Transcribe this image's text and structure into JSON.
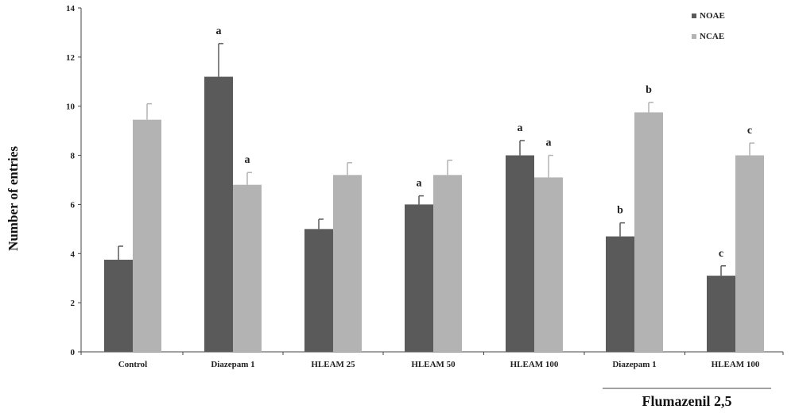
{
  "chart_data": {
    "type": "bar",
    "ylabel": "Number  of entries",
    "ylim": [
      0,
      14
    ],
    "yticks": [
      0,
      2,
      4,
      6,
      8,
      10,
      12,
      14
    ],
    "categories": [
      "Control",
      "Diazepam 1",
      "HLEAM 25",
      "HLEAM 50",
      "HLEAM 100",
      "Diazepam 1",
      "HLEAM 100"
    ],
    "series": [
      {
        "name": "NOAE",
        "color": "#5a5a5a",
        "values": [
          3.75,
          11.2,
          5.0,
          6.0,
          8.0,
          4.7,
          3.1
        ],
        "errors": [
          0.55,
          1.35,
          0.4,
          0.35,
          0.6,
          0.55,
          0.4
        ],
        "labels": [
          "",
          "a",
          "",
          "a",
          "a",
          "b",
          "c"
        ]
      },
      {
        "name": "NCAE",
        "color": "#b3b3b3",
        "values": [
          9.45,
          6.8,
          7.2,
          7.2,
          7.1,
          9.75,
          8.0
        ],
        "errors": [
          0.65,
          0.5,
          0.5,
          0.6,
          0.9,
          0.4,
          0.5
        ],
        "labels": [
          "",
          "a",
          "",
          "",
          "a",
          "b",
          "c"
        ]
      }
    ],
    "legend_position": "top-right",
    "group_annotation": {
      "label": "Flumazenil  2,5",
      "categories": [
        "Diazepam 1",
        "HLEAM 100"
      ]
    }
  }
}
